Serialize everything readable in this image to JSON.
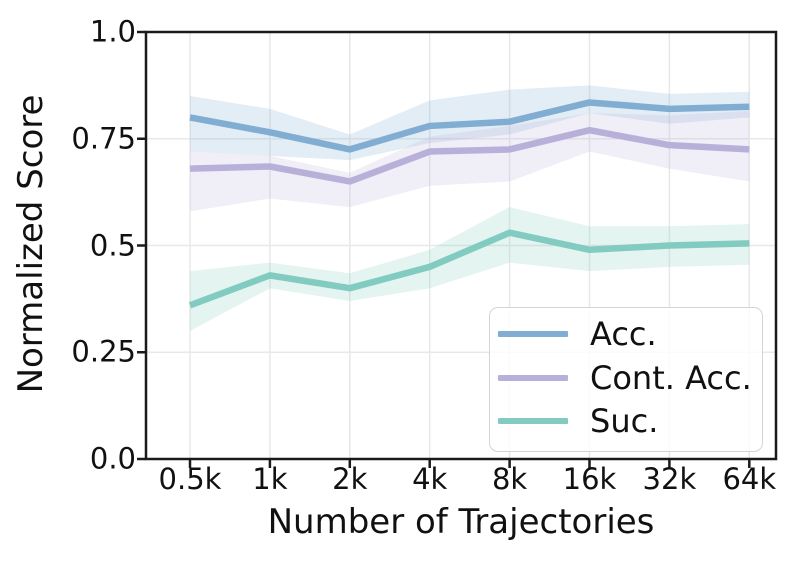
{
  "chart_data": {
    "type": "line",
    "title": "",
    "xlabel": "Number of Trajectories",
    "ylabel": "Normalized Score",
    "x_categories": [
      "0.5k",
      "1k",
      "2k",
      "4k",
      "8k",
      "16k",
      "32k",
      "64k"
    ],
    "y_tick_labels": [
      "0.0",
      "0.25",
      "0.5",
      "0.75",
      "1.0"
    ],
    "y_tick_values": [
      0,
      0.25,
      0.5,
      0.75,
      1.0
    ],
    "ylim": [
      0.0,
      1.0
    ],
    "grid": true,
    "legend_position": "lower right",
    "series": [
      {
        "name": "Acc.",
        "color": "#81add3",
        "values": [
          0.8,
          0.765,
          0.725,
          0.78,
          0.79,
          0.835,
          0.82,
          0.825
        ],
        "band_lower": [
          0.72,
          0.71,
          0.7,
          0.74,
          0.76,
          0.81,
          0.785,
          0.8
        ],
        "band_upper": [
          0.85,
          0.82,
          0.76,
          0.84,
          0.865,
          0.875,
          0.855,
          0.86
        ]
      },
      {
        "name": "Cont. Acc.",
        "color": "#b9b0d9",
        "values": [
          0.68,
          0.685,
          0.65,
          0.72,
          0.725,
          0.77,
          0.735,
          0.725
        ],
        "band_lower": [
          0.58,
          0.61,
          0.59,
          0.64,
          0.65,
          0.72,
          0.68,
          0.65
        ],
        "band_upper": [
          0.72,
          0.71,
          0.67,
          0.755,
          0.78,
          0.81,
          0.805,
          0.815
        ]
      },
      {
        "name": "Suc.",
        "color": "#82cbc1",
        "values": [
          0.36,
          0.43,
          0.4,
          0.45,
          0.53,
          0.49,
          0.5,
          0.505
        ],
        "band_lower": [
          0.3,
          0.4,
          0.37,
          0.4,
          0.46,
          0.44,
          0.45,
          0.455
        ],
        "band_upper": [
          0.44,
          0.46,
          0.435,
          0.49,
          0.59,
          0.545,
          0.545,
          0.55
        ]
      }
    ]
  },
  "colors": {
    "axis": "#1a1a1a",
    "grid": "#e8e8e8",
    "text": "#111111",
    "legend_border": "#d4d4d4",
    "background": "#ffffff"
  }
}
